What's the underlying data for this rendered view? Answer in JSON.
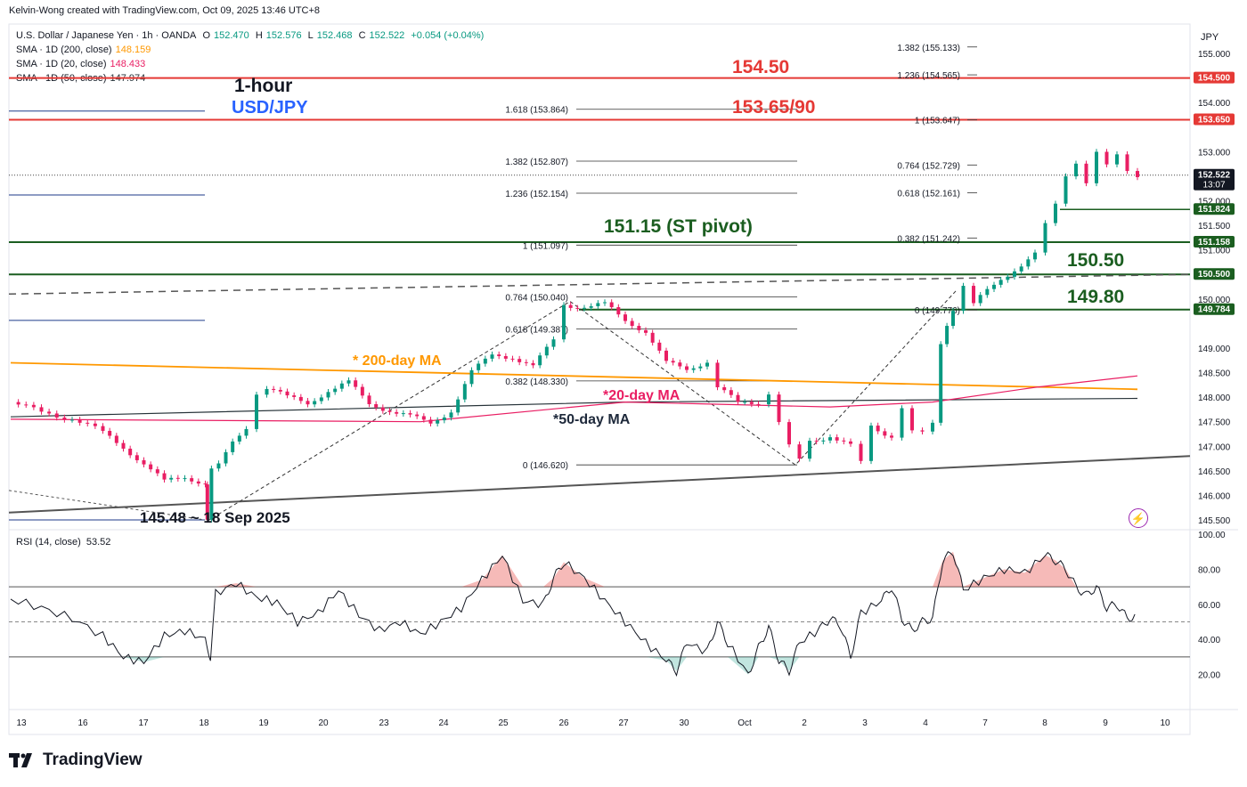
{
  "header": {
    "credit": "Kelvin-Wong created with TradingView.com, Oct 09, 2025 13:46 UTC+8",
    "symbol": "U.S. Dollar / Japanese Yen · 1h · OANDA",
    "o_label": "O",
    "o": "152.470",
    "h_label": "H",
    "h": "152.576",
    "l_label": "L",
    "l": "152.468",
    "c_label": "C",
    "c": "152.522",
    "change": "+0.054 (+0.04%)",
    "sma200_label": "SMA · 1D (200, close)",
    "sma200_value": "148.159",
    "sma20_label": "SMA · 1D (20, close)",
    "sma20_value": "148.433",
    "sma50_label": "SMA · 1D (50, close)",
    "sma50_value": "147.974",
    "currency": "JPY"
  },
  "colors": {
    "up": "#089981",
    "down": "#e91e63",
    "resistance": "#e53935",
    "support": "#1b5e20",
    "sma200": "#ff9800",
    "sma20": "#e91e63",
    "sma50": "#263238",
    "annotation_blue": "#2962ff"
  },
  "rsi": {
    "legend": "RSI (14, close)",
    "value": "53.52",
    "ticks": [
      "100.00",
      "80.00",
      "60.00",
      "40.00",
      "20.00"
    ]
  },
  "brand": "TradingView",
  "chart_data": {
    "type": "candlestick",
    "title": "1-hour",
    "subtitle": "USD/JPY",
    "x_ticks": [
      "13",
      "16",
      "17",
      "18",
      "19",
      "20",
      "23",
      "24",
      "25",
      "26",
      "27",
      "30",
      "Oct",
      "2",
      "3",
      "4",
      "7",
      "8",
      "9",
      "10"
    ],
    "y_ticks": [
      "155.000",
      "154.000",
      "153.000",
      "152.000",
      "151.500",
      "151.000",
      "150.000",
      "149.000",
      "148.500",
      "148.000",
      "147.500",
      "147.000",
      "146.500",
      "146.000",
      "145.500"
    ],
    "ylim": [
      145.3,
      155.6
    ],
    "price_tags": [
      {
        "label": "154.500",
        "kind": "resistance"
      },
      {
        "label": "153.650",
        "kind": "resistance"
      },
      {
        "label": "152.522",
        "kind": "current",
        "sub": "13:07"
      },
      {
        "label": "151.824",
        "kind": "support"
      },
      {
        "label": "151.158",
        "kind": "support"
      },
      {
        "label": "150.500",
        "kind": "support"
      },
      {
        "label": "149.784",
        "kind": "support"
      }
    ],
    "annotations": {
      "r1": "154.50",
      "r2": "153.65/90",
      "pivot": "151.15 (ST pivot)",
      "s1": "150.50",
      "s2": "149.80",
      "low": "145.48 ~ 18 Sep 2025",
      "ma200": "* 200-day MA",
      "ma20": "*20-day MA",
      "ma50": "*50-day MA"
    },
    "fib_left": [
      {
        "label": "1.618 (153.864)",
        "level": 153.864
      },
      {
        "label": "1.382 (152.807)",
        "level": 152.807
      },
      {
        "label": "1.236 (152.154)",
        "level": 152.154
      },
      {
        "label": "1 (151.097)",
        "level": 151.097
      },
      {
        "label": "0.764 (150.040)",
        "level": 150.04
      },
      {
        "label": "0.618 (149.387)",
        "level": 149.387
      },
      {
        "label": "0.382 (148.330)",
        "level": 148.33
      },
      {
        "label": "0 (146.620)",
        "level": 146.62
      }
    ],
    "fib_right": [
      {
        "label": "1.382 (155.133)",
        "level": 155.133
      },
      {
        "label": "1.236 (154.565)",
        "level": 154.565
      },
      {
        "label": "1 (153.647)",
        "level": 153.647
      },
      {
        "label": "0.764 (152.729)",
        "level": 152.729
      },
      {
        "label": "0.618 (152.161)",
        "level": 152.161
      },
      {
        "label": "0.382 (151.242)",
        "level": 151.242
      },
      {
        "label": "0 (149.776)",
        "level": 149.776
      }
    ],
    "price_path": [
      [
        0,
        147.9
      ],
      [
        3,
        147.7
      ],
      [
        6,
        147.55
      ],
      [
        9,
        147.3
      ],
      [
        11,
        147.0
      ],
      [
        13,
        146.6
      ],
      [
        15,
        146.3
      ],
      [
        17,
        146.4
      ],
      [
        19,
        146.2
      ],
      [
        19.2,
        145.48
      ],
      [
        19.6,
        146.5
      ],
      [
        21,
        146.9
      ],
      [
        23,
        147.4
      ],
      [
        24,
        148.1
      ],
      [
        25,
        148.2
      ],
      [
        27,
        148.0
      ],
      [
        29,
        147.9
      ],
      [
        31,
        148.1
      ],
      [
        33,
        148.3
      ],
      [
        35,
        147.9
      ],
      [
        37,
        147.7
      ],
      [
        39,
        147.6
      ],
      [
        41,
        147.5
      ],
      [
        43,
        147.7
      ],
      [
        45,
        148.5
      ],
      [
        47,
        148.9
      ],
      [
        49,
        148.8
      ],
      [
        51,
        148.6
      ],
      [
        53,
        149.2
      ],
      [
        54,
        149.9
      ],
      [
        56,
        149.8
      ],
      [
        58,
        149.9
      ],
      [
        60,
        149.6
      ],
      [
        62,
        149.3
      ],
      [
        64,
        148.7
      ],
      [
        66,
        148.6
      ],
      [
        68,
        148.7
      ],
      [
        69,
        148.2
      ],
      [
        71,
        147.9
      ],
      [
        73,
        147.9
      ],
      [
        74,
        148.1
      ],
      [
        75,
        147.5
      ],
      [
        76,
        147.0
      ],
      [
        77,
        146.7
      ],
      [
        78,
        147.1
      ],
      [
        80,
        147.2
      ],
      [
        82,
        147.0
      ],
      [
        83,
        146.65
      ],
      [
        84,
        147.4
      ],
      [
        86,
        147.2
      ],
      [
        87,
        147.8
      ],
      [
        88,
        147.3
      ],
      [
        89,
        147.25
      ],
      [
        90,
        147.45
      ],
      [
        90.8,
        149.1
      ],
      [
        92,
        149.8
      ],
      [
        93,
        150.3
      ],
      [
        94,
        149.9
      ],
      [
        96,
        150.3
      ],
      [
        98,
        150.6
      ],
      [
        100,
        150.9
      ],
      [
        101,
        151.5
      ],
      [
        102,
        151.9
      ],
      [
        103,
        152.5
      ],
      [
        104,
        152.8
      ],
      [
        105,
        152.4
      ],
      [
        106,
        153.0
      ],
      [
        107,
        152.7
      ],
      [
        108,
        152.9
      ],
      [
        109,
        152.6
      ],
      [
        110,
        152.52
      ]
    ],
    "sma200": [
      [
        0,
        148.7
      ],
      [
        110,
        148.159
      ]
    ],
    "sma50": [
      [
        0,
        147.6
      ],
      [
        60,
        147.9
      ],
      [
        110,
        147.974
      ]
    ],
    "sma20": [
      [
        0,
        147.55
      ],
      [
        40,
        147.5
      ],
      [
        60,
        147.9
      ],
      [
        80,
        147.8
      ],
      [
        90,
        147.9
      ],
      [
        100,
        148.2
      ],
      [
        110,
        148.433
      ]
    ],
    "rsi_path": [
      [
        0,
        63
      ],
      [
        3,
        58
      ],
      [
        6,
        52
      ],
      [
        9,
        42
      ],
      [
        11,
        30
      ],
      [
        13,
        27
      ],
      [
        15,
        42
      ],
      [
        17,
        45
      ],
      [
        19,
        40
      ],
      [
        19.5,
        30
      ],
      [
        20,
        66
      ],
      [
        22,
        72
      ],
      [
        24,
        64
      ],
      [
        26,
        61
      ],
      [
        28,
        50
      ],
      [
        30,
        55
      ],
      [
        32,
        68
      ],
      [
        34,
        54
      ],
      [
        36,
        45
      ],
      [
        38,
        50
      ],
      [
        40,
        43
      ],
      [
        42,
        50
      ],
      [
        44,
        58
      ],
      [
        46,
        74
      ],
      [
        48,
        88
      ],
      [
        50,
        62
      ],
      [
        52,
        60
      ],
      [
        53,
        75
      ],
      [
        54,
        84
      ],
      [
        56,
        75
      ],
      [
        58,
        62
      ],
      [
        60,
        50
      ],
      [
        62,
        38
      ],
      [
        64,
        28
      ],
      [
        65,
        22
      ],
      [
        66,
        38
      ],
      [
        68,
        33
      ],
      [
        69,
        50
      ],
      [
        70,
        38
      ],
      [
        72,
        20
      ],
      [
        73,
        35
      ],
      [
        74,
        47
      ],
      [
        75,
        28
      ],
      [
        76,
        22
      ],
      [
        77,
        38
      ],
      [
        79,
        46
      ],
      [
        80,
        52
      ],
      [
        81,
        48
      ],
      [
        82,
        30
      ],
      [
        83,
        55
      ],
      [
        85,
        62
      ],
      [
        86,
        70
      ],
      [
        87,
        52
      ],
      [
        88,
        45
      ],
      [
        89,
        50
      ],
      [
        90,
        52
      ],
      [
        91,
        85
      ],
      [
        92,
        90
      ],
      [
        93,
        68
      ],
      [
        95,
        75
      ],
      [
        97,
        80
      ],
      [
        99,
        78
      ],
      [
        101,
        88
      ],
      [
        102,
        85
      ],
      [
        103,
        80
      ],
      [
        104,
        70
      ],
      [
        105,
        65
      ],
      [
        106,
        70
      ],
      [
        107,
        58
      ],
      [
        108,
        60
      ],
      [
        109,
        52
      ],
      [
        110,
        53.5
      ]
    ]
  }
}
